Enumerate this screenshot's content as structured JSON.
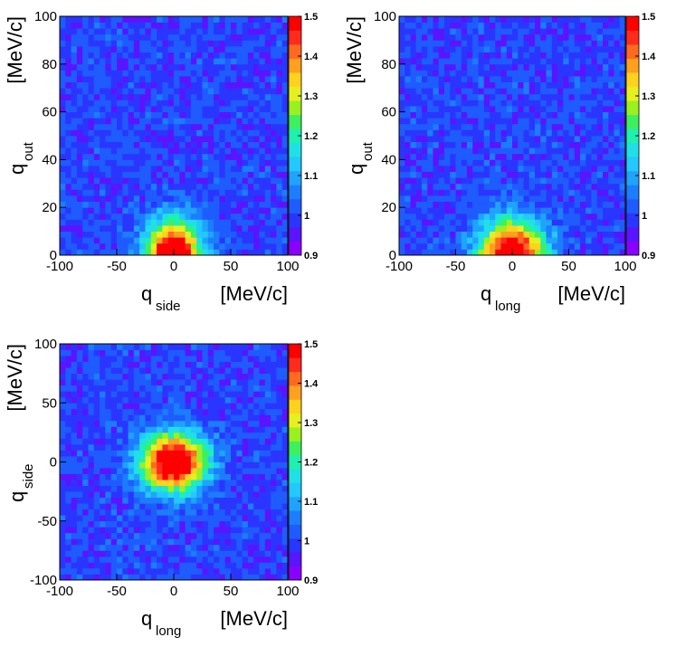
{
  "chart_data": [
    {
      "type": "heatmap",
      "xlabel": "q",
      "xlabel_sub": "side",
      "xunit": "[MeV/c]",
      "ylabel": "q",
      "ylabel_sub": "out",
      "yunit": "[MeV/c]",
      "xlim": [
        -100,
        100
      ],
      "ylim": [
        0,
        100
      ],
      "xticks": [
        -100,
        -50,
        0,
        50,
        100
      ],
      "xtick_labels": [
        "-100",
        "-50",
        "0",
        "50",
        "100"
      ],
      "yticks": [
        0,
        20,
        40,
        60,
        80,
        100
      ],
      "ytick_labels": [
        "0",
        "20",
        "40",
        "60",
        "80",
        "100"
      ],
      "color_range": [
        0.9,
        1.5
      ],
      "colorbar_ticks": [
        0.9,
        1.0,
        1.1,
        1.2,
        1.3,
        1.4,
        1.5
      ],
      "colorbar_labels": [
        "0.9",
        "1",
        "1.1",
        "1.2",
        "1.3",
        "1.4",
        "1.5"
      ],
      "peak": {
        "x": 0,
        "y": 0,
        "value": 1.5,
        "width_x": 17,
        "width_y": 10
      },
      "background_value": 1.0
    },
    {
      "type": "heatmap",
      "xlabel": "q",
      "xlabel_sub": "long",
      "xunit": "[MeV/c]",
      "ylabel": "q",
      "ylabel_sub": "out",
      "yunit": "[MeV/c]",
      "xlim": [
        -100,
        100
      ],
      "ylim": [
        0,
        100
      ],
      "xticks": [
        -100,
        -50,
        0,
        50,
        100
      ],
      "xtick_labels": [
        "-100",
        "-50",
        "0",
        "50",
        "100"
      ],
      "yticks": [
        0,
        20,
        40,
        60,
        80,
        100
      ],
      "ytick_labels": [
        "0",
        "20",
        "40",
        "60",
        "80",
        "100"
      ],
      "color_range": [
        0.9,
        1.5
      ],
      "colorbar_ticks": [
        0.9,
        1.0,
        1.1,
        1.2,
        1.3,
        1.4,
        1.5
      ],
      "colorbar_labels": [
        "0.9",
        "1",
        "1.1",
        "1.2",
        "1.3",
        "1.4",
        "1.5"
      ],
      "peak": {
        "x": 0,
        "y": 0,
        "value": 1.5,
        "width_x": 20,
        "width_y": 10
      },
      "background_value": 1.0
    },
    {
      "type": "heatmap",
      "xlabel": "q",
      "xlabel_sub": "long",
      "xunit": "[MeV/c]",
      "ylabel": "q",
      "ylabel_sub": "side",
      "yunit": "[MeV/c]",
      "xlim": [
        -100,
        100
      ],
      "ylim": [
        -100,
        100
      ],
      "xticks": [
        -100,
        -50,
        0,
        50,
        100
      ],
      "xtick_labels": [
        "-100",
        "-50",
        "0",
        "50",
        "100"
      ],
      "yticks": [
        -100,
        -50,
        0,
        50,
        100
      ],
      "ytick_labels": [
        "-100",
        "-50",
        "0",
        "50",
        "100"
      ],
      "color_range": [
        0.9,
        1.5
      ],
      "colorbar_ticks": [
        0.9,
        1.0,
        1.1,
        1.2,
        1.3,
        1.4,
        1.5
      ],
      "colorbar_labels": [
        "0.9",
        "1",
        "1.1",
        "1.2",
        "1.3",
        "1.4",
        "1.5"
      ],
      "peak": {
        "x": 0,
        "y": 0,
        "value": 1.5,
        "width_x": 20,
        "width_y": 17
      },
      "background_value": 1.0
    }
  ]
}
